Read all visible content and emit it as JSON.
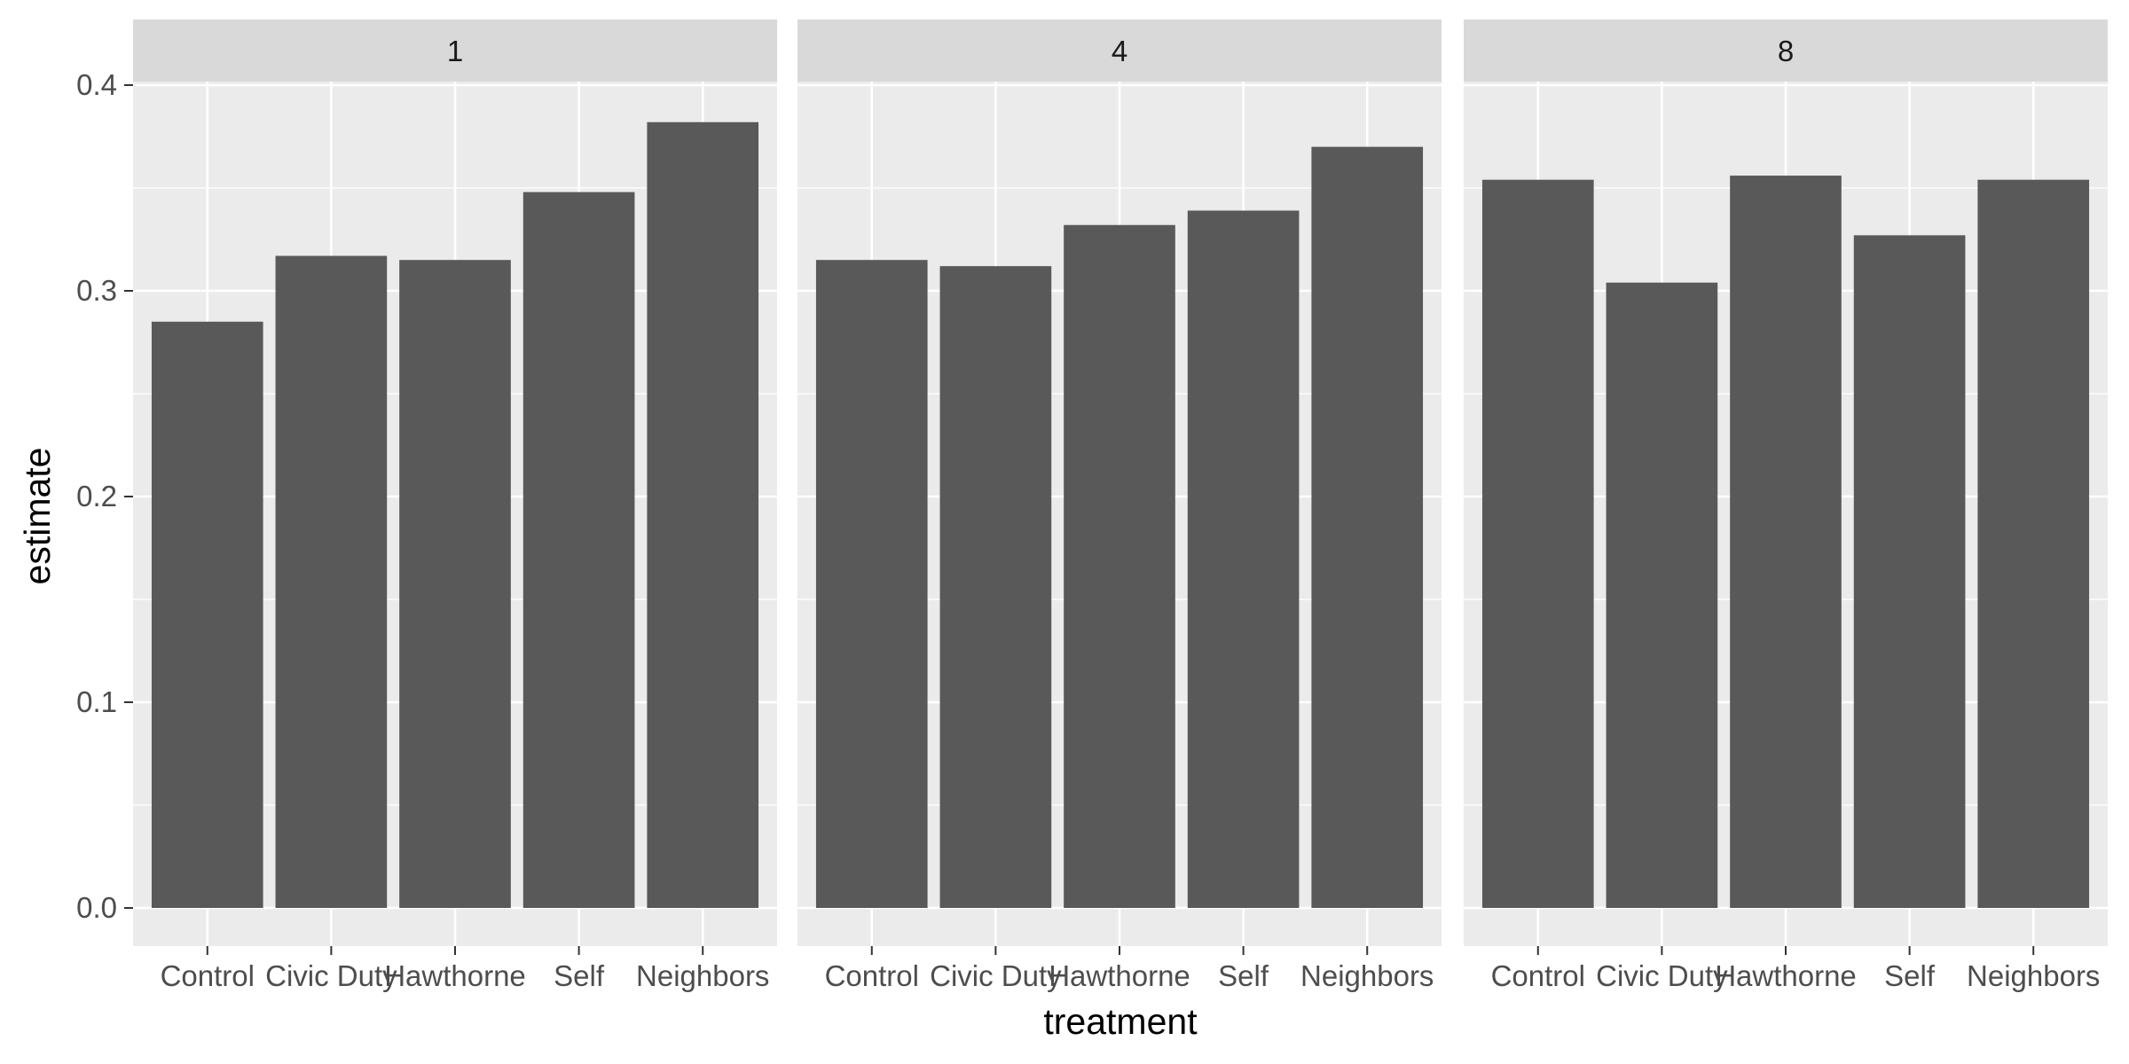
{
  "chart_data": {
    "type": "bar",
    "facet_variable": "",
    "xlabel": "treatment",
    "ylabel": "estimate",
    "ylim": [
      0,
      0.4
    ],
    "yticks": [
      "0.0",
      "0.1",
      "0.2",
      "0.3",
      "0.4"
    ],
    "ytick_values": [
      0,
      0.1,
      0.2,
      0.3,
      0.4
    ],
    "categories": [
      "Control",
      "Civic Duty",
      "Hawthorne",
      "Self",
      "Neighbors"
    ],
    "bar_color": "#595959",
    "panel_background": "#ebebeb",
    "strip_background": "#d9d9d9",
    "grid": true,
    "legend": "none",
    "facets": [
      {
        "label": "1",
        "values": [
          0.285,
          0.317,
          0.315,
          0.348,
          0.382
        ]
      },
      {
        "label": "4",
        "values": [
          0.315,
          0.312,
          0.332,
          0.339,
          0.37
        ]
      },
      {
        "label": "8",
        "values": [
          0.354,
          0.304,
          0.356,
          0.327,
          0.354
        ]
      }
    ]
  }
}
